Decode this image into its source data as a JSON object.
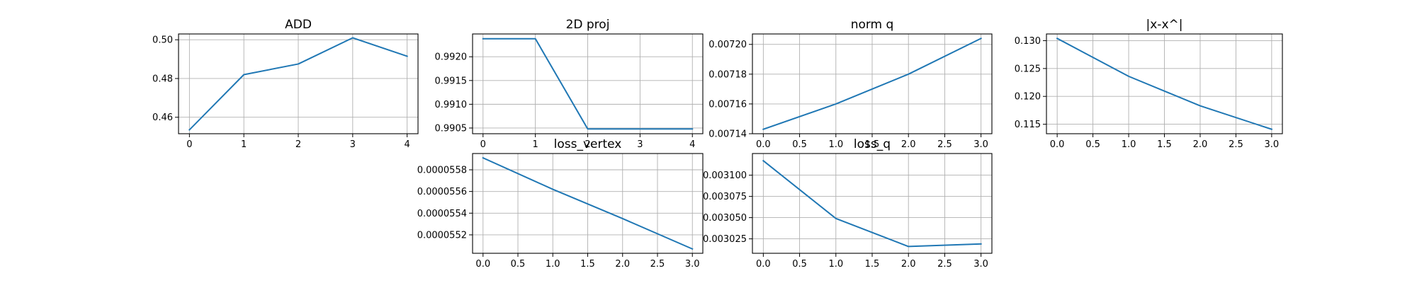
{
  "style": {
    "line_color": "#1f77b4",
    "grid": true
  },
  "chart_data": [
    {
      "type": "line",
      "title": "ADD",
      "x": [
        0,
        1,
        2,
        3,
        4
      ],
      "values": [
        0.4535,
        0.482,
        0.4875,
        0.501,
        0.4915
      ],
      "xlim": [
        -0.2,
        4.2
      ],
      "ylim": [
        0.4515,
        0.503
      ],
      "xticks": [
        0,
        1,
        2,
        3,
        4
      ],
      "xtick_labels": [
        "0",
        "1",
        "2",
        "3",
        "4"
      ],
      "yticks": [
        0.46,
        0.48,
        0.5
      ],
      "ytick_labels": [
        "0.46",
        "0.48",
        "0.50"
      ]
    },
    {
      "type": "line",
      "title": "2D proj",
      "x": [
        0,
        1,
        2,
        3,
        4
      ],
      "values": [
        0.99238,
        0.99238,
        0.99048,
        0.99048,
        0.99048
      ],
      "xlim": [
        -0.2,
        4.2
      ],
      "ylim": [
        0.99038,
        0.99248
      ],
      "xticks": [
        0,
        1,
        2,
        3,
        4
      ],
      "xtick_labels": [
        "0",
        "1",
        "2",
        "3",
        "4"
      ],
      "yticks": [
        0.9905,
        0.991,
        0.9915,
        0.992
      ],
      "ytick_labels": [
        "0.9905",
        "0.9910",
        "0.9915",
        "0.9920"
      ]
    },
    {
      "type": "line",
      "title": "norm q",
      "x": [
        0,
        1,
        2,
        3
      ],
      "values": [
        0.007143,
        0.00716,
        0.00718,
        0.007204
      ],
      "xlim": [
        -0.15,
        3.15
      ],
      "ylim": [
        0.00714,
        0.007207
      ],
      "xticks": [
        0,
        0.5,
        1,
        1.5,
        2,
        2.5,
        3
      ],
      "xtick_labels": [
        "0.0",
        "0.5",
        "1.0",
        "1.5",
        "2.0",
        "2.5",
        "3.0"
      ],
      "yticks": [
        0.00714,
        0.00716,
        0.00718,
        0.0072
      ],
      "ytick_labels": [
        "0.00714",
        "0.00716",
        "0.00718",
        "0.00720"
      ]
    },
    {
      "type": "line",
      "title": "|x-x^|",
      "x": [
        0,
        1,
        2,
        3
      ],
      "values": [
        0.1304,
        0.1236,
        0.1183,
        0.1141
      ],
      "xlim": [
        -0.15,
        3.15
      ],
      "ylim": [
        0.1133,
        0.1312
      ],
      "xticks": [
        0,
        0.5,
        1,
        1.5,
        2,
        2.5,
        3
      ],
      "xtick_labels": [
        "0.0",
        "0.5",
        "1.0",
        "1.5",
        "2.0",
        "2.5",
        "3.0"
      ],
      "yticks": [
        0.115,
        0.12,
        0.125,
        0.13
      ],
      "ytick_labels": [
        "0.115",
        "0.120",
        "0.125",
        "0.130"
      ]
    },
    {
      "type": "line",
      "title": "loss_vertex",
      "x": [
        0,
        1,
        2,
        3
      ],
      "values": [
        5.591e-05,
        5.562e-05,
        5.535e-05,
        5.507e-05
      ],
      "xlim": [
        -0.15,
        3.15
      ],
      "ylim": [
        5.503e-05,
        5.595e-05
      ],
      "xticks": [
        0,
        0.5,
        1,
        1.5,
        2,
        2.5,
        3
      ],
      "xtick_labels": [
        "0.0",
        "0.5",
        "1.0",
        "1.5",
        "2.0",
        "2.5",
        "3.0"
      ],
      "yticks": [
        5.52e-05,
        5.54e-05,
        5.56e-05,
        5.58e-05
      ],
      "ytick_labels": [
        "0.0000552",
        "0.0000554",
        "0.0000556",
        "0.0000558"
      ]
    },
    {
      "type": "line",
      "title": "loss_q",
      "x": [
        0,
        1,
        2,
        3
      ],
      "values": [
        0.003117,
        0.003049,
        0.003016,
        0.003019
      ],
      "xlim": [
        -0.15,
        3.15
      ],
      "ylim": [
        0.003008,
        0.0031255
      ],
      "xticks": [
        0,
        0.5,
        1,
        1.5,
        2,
        2.5,
        3
      ],
      "xtick_labels": [
        "0.0",
        "0.5",
        "1.0",
        "1.5",
        "2.0",
        "2.5",
        "3.0"
      ],
      "yticks": [
        0.003025,
        0.00305,
        0.003075,
        0.0031
      ],
      "ytick_labels": [
        "0.003025",
        "0.003050",
        "0.003075",
        "0.003100"
      ]
    }
  ]
}
